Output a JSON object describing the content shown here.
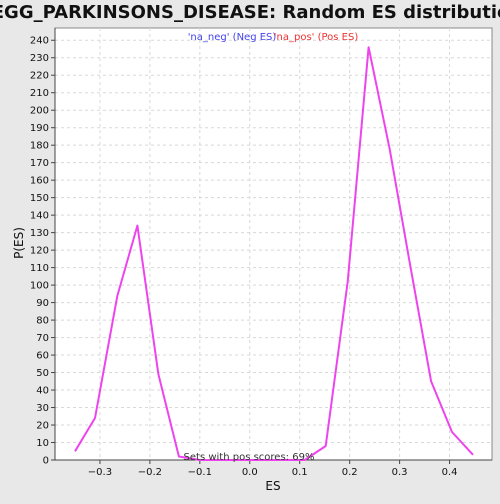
{
  "chart_data": {
    "type": "line",
    "title": "KEGG_PARKINSONS_DISEASE: Random ES distribution",
    "xlabel": "ES",
    "ylabel": "P(ES)",
    "xlim": [
      -0.39,
      0.485
    ],
    "ylim": [
      0,
      247
    ],
    "grid": true,
    "x_ticks": [
      -0.3,
      -0.2,
      -0.1,
      0.0,
      0.1,
      0.2,
      0.3,
      0.4
    ],
    "x_tick_labels": [
      "−0.3",
      "−0.2",
      "−0.1",
      "0.0",
      "0.1",
      "0.2",
      "0.3",
      "0.4"
    ],
    "y_ticks": [
      0,
      10,
      20,
      30,
      40,
      50,
      60,
      70,
      80,
      90,
      100,
      110,
      120,
      130,
      140,
      150,
      160,
      170,
      180,
      190,
      200,
      210,
      220,
      230,
      240
    ],
    "legend": {
      "placement": "top-center",
      "entries": [
        {
          "label": "'na_neg' (Neg ES)",
          "color": "#4444ee"
        },
        {
          "label": "'na_pos' (Pos ES)",
          "color": "#ee3333"
        }
      ]
    },
    "annotation": "Sets with pos scores: 69%",
    "series": [
      {
        "color": "#ee44ee",
        "x": [
          -0.35,
          -0.31,
          -0.265,
          -0.225,
          -0.183,
          -0.142,
          -0.1,
          -0.058,
          -0.017,
          0.025,
          0.067,
          0.11,
          0.152,
          0.196,
          0.238,
          0.28,
          0.322,
          0.363,
          0.405,
          0.447
        ],
        "y": [
          5,
          24,
          94,
          134,
          49,
          2,
          0,
          0,
          0,
          0,
          0,
          0,
          8,
          102,
          236,
          178,
          110,
          45,
          16,
          3
        ]
      }
    ]
  }
}
